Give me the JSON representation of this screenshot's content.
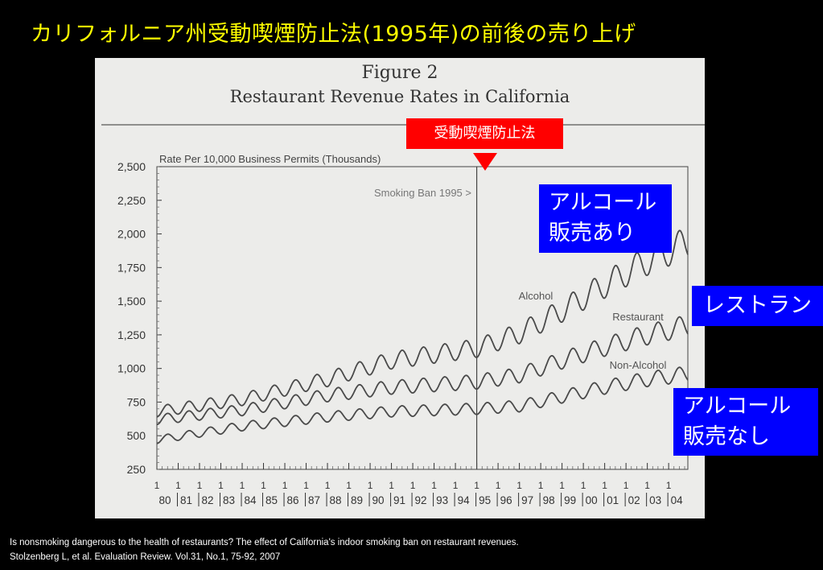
{
  "slide": {
    "title": "カリフォルニア州受動喫煙防止法(1995年)の前後の売り上げ"
  },
  "callouts": {
    "ban_label": "受動喫煙防止法",
    "alcohol_line1": "アルコール",
    "alcohol_line2": "販売あり",
    "restaurant": "レストラン",
    "nonalcohol_line1": "アルコール",
    "nonalcohol_line2": "販売なし"
  },
  "colors": {
    "background": "#000000",
    "title": "#ffff00",
    "callout_red": "#ff0000",
    "callout_blue": "#0000ff",
    "panel": "#ececea",
    "ink": "#333333"
  },
  "citation": {
    "line1": "Is nonsmoking dangerous to the health of restaurants? The effect of California's indoor smoking ban on restaurant revenues.",
    "line2": " Stolzenberg L, et al. Evaluation Review. Vol.31, No.1, 75-92, 2007"
  },
  "chart_data": {
    "type": "line",
    "figure_label": "Figure 2",
    "title": "Restaurant Revenue Rates in California",
    "ylabel": "Rate Per 10,000 Business Permits (Thousands)",
    "ylim": [
      250,
      2500
    ],
    "y_ticks": [
      "2,500",
      "2,250",
      "2,000",
      "1,750",
      "1,500",
      "1,250",
      "1,000",
      "750",
      "500",
      "250"
    ],
    "y_tick_values": [
      2500,
      2250,
      2000,
      1750,
      1500,
      1250,
      1000,
      750,
      500,
      250
    ],
    "x_tick_quarter": "1",
    "x_tick_years": [
      "80",
      "81",
      "82",
      "83",
      "84",
      "85",
      "86",
      "87",
      "88",
      "89",
      "90",
      "91",
      "92",
      "93",
      "94",
      "95",
      "96",
      "97",
      "98",
      "99",
      "00",
      "01",
      "02",
      "03",
      "04"
    ],
    "annotation": "Smoking Ban 1995 >",
    "ban_year": 1995,
    "x_range": [
      1980,
      2004.9
    ],
    "seasonal_amplitude": 0.06,
    "series": [
      {
        "name": "Alcohol",
        "annual": [
          [
            1980,
            680
          ],
          [
            1984,
            770
          ],
          [
            1988,
            920
          ],
          [
            1991,
            1060
          ],
          [
            1995,
            1150
          ],
          [
            1997,
            1260
          ],
          [
            1999,
            1430
          ],
          [
            2001,
            1620
          ],
          [
            2003,
            1800
          ],
          [
            2004.9,
            1940
          ]
        ]
      },
      {
        "name": "Restaurant",
        "annual": [
          [
            1980,
            620
          ],
          [
            1984,
            690
          ],
          [
            1988,
            800
          ],
          [
            1991,
            860
          ],
          [
            1995,
            900
          ],
          [
            1997,
            950
          ],
          [
            1999,
            1060
          ],
          [
            2001,
            1160
          ],
          [
            2003,
            1250
          ],
          [
            2004.9,
            1320
          ]
        ]
      },
      {
        "name": "Non-Alcohol",
        "annual": [
          [
            1980,
            470
          ],
          [
            1984,
            570
          ],
          [
            1988,
            640
          ],
          [
            1991,
            680
          ],
          [
            1995,
            700
          ],
          [
            1997,
            720
          ],
          [
            1999,
            790
          ],
          [
            2001,
            860
          ],
          [
            2003,
            920
          ],
          [
            2004.9,
            960
          ]
        ]
      }
    ]
  }
}
